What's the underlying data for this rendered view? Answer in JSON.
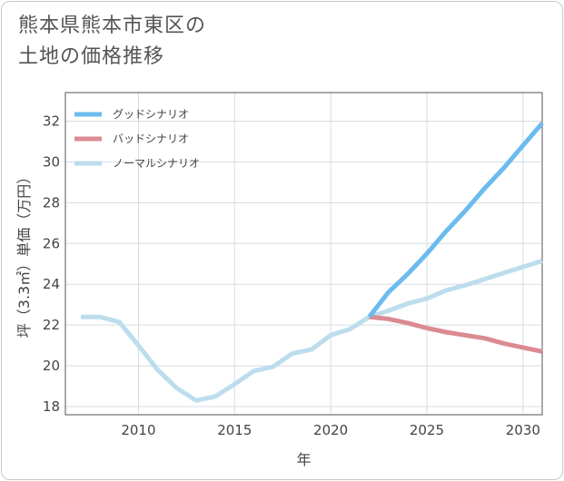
{
  "title_lines": [
    "熊本県熊本市東区の",
    "土地の価格推移"
  ],
  "chart_data": {
    "type": "line",
    "title": "熊本県熊本市東区の土地の価格推移",
    "xlabel": "年",
    "ylabel": "坪（3.3㎡）単価（万円）",
    "xlim": [
      2006.2,
      2031
    ],
    "ylim": [
      17.6,
      33.4
    ],
    "xticks": [
      2010,
      2015,
      2020,
      2025,
      2030
    ],
    "yticks": [
      18,
      20,
      22,
      24,
      26,
      28,
      30,
      32
    ],
    "grid": true,
    "legend_position": "top-left",
    "series": [
      {
        "name": "グッドシナリオ",
        "color": "#6cbbee",
        "x": [
          2022,
          2023,
          2024,
          2025,
          2026,
          2027,
          2028,
          2029,
          2030,
          2031
        ],
        "y": [
          22.4,
          23.6,
          24.5,
          25.5,
          26.6,
          27.6,
          28.7,
          29.7,
          30.8,
          31.9
        ]
      },
      {
        "name": "バッドシナリオ",
        "color": "#dc8a92",
        "x": [
          2022,
          2023,
          2024,
          2025,
          2026,
          2027,
          2028,
          2029,
          2030,
          2031
        ],
        "y": [
          22.4,
          22.3,
          22.1,
          21.85,
          21.65,
          21.5,
          21.35,
          21.1,
          20.9,
          20.7
        ]
      },
      {
        "name": "ノーマルシナリオ",
        "color": "#bcddec",
        "x": [
          2007,
          2008,
          2009,
          2010,
          2011,
          2012,
          2013,
          2014,
          2015,
          2016,
          2017,
          2018,
          2019,
          2020,
          2021,
          2022,
          2023,
          2024,
          2025,
          2026,
          2027,
          2028,
          2029,
          2030,
          2031
        ],
        "y": [
          22.4,
          22.4,
          22.15,
          21.0,
          19.8,
          18.9,
          18.3,
          18.5,
          19.1,
          19.75,
          19.95,
          20.6,
          20.8,
          21.5,
          21.8,
          22.4,
          22.7,
          23.05,
          23.3,
          23.7,
          23.95,
          24.25,
          24.55,
          24.85,
          25.15
        ]
      }
    ]
  }
}
